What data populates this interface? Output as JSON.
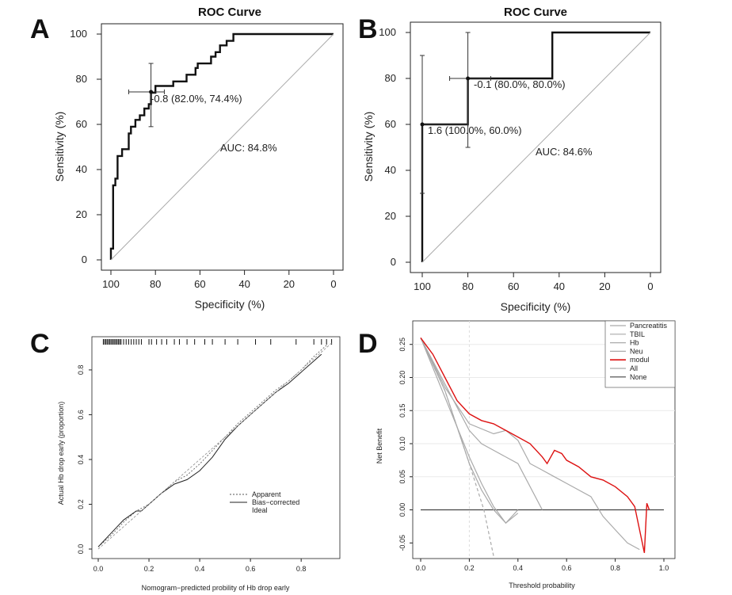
{
  "panels": {
    "A": {
      "label": "A",
      "chart_data": {
        "type": "line",
        "title": "ROC Curve",
        "xlabel": "Specificity (%)",
        "ylabel": "Sensitivity (%)",
        "x_reversed": true,
        "xlim": [
          100,
          0
        ],
        "ylim": [
          0,
          100
        ],
        "xticks": [
          "100",
          "80",
          "60",
          "40",
          "20",
          "0"
        ],
        "yticks": [
          "0",
          "20",
          "40",
          "60",
          "80",
          "100"
        ],
        "auc_label": "AUC: 84.8%",
        "threshold_label": "-0.8 (82.0%, 74.4%)",
        "threshold_point": {
          "specificity": 82,
          "sensitivity": 74.4,
          "ci_spec": [
            92,
            76
          ],
          "ci_sens": [
            59,
            87
          ]
        },
        "series": [
          {
            "type": "step",
            "points": [
              [
                100,
                0
              ],
              [
                100,
                5
              ],
              [
                99,
                5
              ],
              [
                99,
                33
              ],
              [
                98,
                33
              ],
              [
                98,
                36
              ],
              [
                97,
                36
              ],
              [
                97,
                46
              ],
              [
                95,
                46
              ],
              [
                95,
                49
              ],
              [
                92,
                49
              ],
              [
                92,
                56
              ],
              [
                91,
                56
              ],
              [
                91,
                59
              ],
              [
                89,
                59
              ],
              [
                89,
                62
              ],
              [
                87,
                62
              ],
              [
                87,
                64
              ],
              [
                85,
                64
              ],
              [
                85,
                67
              ],
              [
                83,
                67
              ],
              [
                83,
                69
              ],
              [
                82,
                69
              ],
              [
                82,
                74
              ],
              [
                80,
                74
              ],
              [
                80,
                77
              ],
              [
                72,
                77
              ],
              [
                72,
                79
              ],
              [
                66,
                79
              ],
              [
                66,
                82
              ],
              [
                62,
                82
              ],
              [
                62,
                85
              ],
              [
                61,
                85
              ],
              [
                61,
                87
              ],
              [
                55,
                87
              ],
              [
                55,
                90
              ],
              [
                53,
                90
              ],
              [
                53,
                92
              ],
              [
                51,
                92
              ],
              [
                51,
                95
              ],
              [
                48,
                95
              ],
              [
                48,
                97
              ],
              [
                45,
                97
              ],
              [
                45,
                100
              ],
              [
                0,
                100
              ]
            ]
          },
          {
            "type": "diagonal",
            "points": [
              [
                100,
                0
              ],
              [
                0,
                100
              ]
            ]
          }
        ]
      }
    },
    "B": {
      "label": "B",
      "chart_data": {
        "type": "line",
        "title": "ROC Curve",
        "xlabel": "Specificity (%)",
        "ylabel": "Sensitivity (%)",
        "x_reversed": true,
        "xlim": [
          100,
          0
        ],
        "ylim": [
          0,
          100
        ],
        "xticks": [
          "100",
          "80",
          "60",
          "40",
          "20",
          "0"
        ],
        "yticks": [
          "0",
          "20",
          "40",
          "60",
          "80",
          "100"
        ],
        "auc_label": "AUC: 84.6%",
        "threshold_labels": [
          "-0.1 (80.0%, 80.0%)",
          "1.6 (100.0%, 60.0%)"
        ],
        "threshold_points": [
          {
            "specificity": 80,
            "sensitivity": 80,
            "ci_spec": [
              88,
              70
            ],
            "ci_sens": [
              50,
              100
            ]
          },
          {
            "specificity": 100,
            "sensitivity": 60,
            "ci_spec": [
              100,
              80
            ],
            "ci_sens": [
              30,
              90
            ]
          }
        ],
        "series": [
          {
            "type": "step",
            "points": [
              [
                100,
                0
              ],
              [
                100,
                60
              ],
              [
                80,
                60
              ],
              [
                80,
                80
              ],
              [
                43,
                80
              ],
              [
                43,
                100
              ],
              [
                0,
                100
              ]
            ]
          },
          {
            "type": "diagonal",
            "points": [
              [
                100,
                0
              ],
              [
                0,
                100
              ]
            ]
          }
        ]
      }
    },
    "C": {
      "label": "C",
      "chart_data": {
        "type": "line",
        "xlabel": "Nomogram−predicted probility of Hb drop early",
        "ylabel": "Actual Hb drop early (proportion)",
        "xlim": [
          0,
          0.94
        ],
        "ylim": [
          0,
          0.92
        ],
        "xticks": [
          "0.0",
          "0.2",
          "0.4",
          "0.6",
          "0.8"
        ],
        "yticks": [
          "0.0",
          "0.2",
          "0.4",
          "0.6",
          "0.8"
        ],
        "legend": [
          "Apparent",
          "Bias−corrected",
          "Ideal"
        ],
        "series": [
          {
            "name": "Apparent",
            "points": [
              [
                0.0,
                0.01
              ],
              [
                0.05,
                0.06
              ],
              [
                0.1,
                0.12
              ],
              [
                0.15,
                0.17
              ],
              [
                0.2,
                0.2
              ],
              [
                0.25,
                0.25
              ],
              [
                0.3,
                0.3
              ],
              [
                0.35,
                0.33
              ],
              [
                0.4,
                0.38
              ],
              [
                0.45,
                0.44
              ],
              [
                0.5,
                0.5
              ],
              [
                0.55,
                0.56
              ],
              [
                0.6,
                0.61
              ],
              [
                0.65,
                0.66
              ],
              [
                0.7,
                0.71
              ],
              [
                0.75,
                0.75
              ],
              [
                0.8,
                0.8
              ],
              [
                0.85,
                0.86
              ],
              [
                0.9,
                0.91
              ]
            ]
          },
          {
            "name": "Bias−corrected",
            "points": [
              [
                0.0,
                0.01
              ],
              [
                0.05,
                0.07
              ],
              [
                0.1,
                0.13
              ],
              [
                0.15,
                0.17
              ],
              [
                0.17,
                0.17
              ],
              [
                0.2,
                0.2
              ],
              [
                0.25,
                0.25
              ],
              [
                0.3,
                0.29
              ],
              [
                0.35,
                0.31
              ],
              [
                0.4,
                0.35
              ],
              [
                0.45,
                0.41
              ],
              [
                0.5,
                0.49
              ],
              [
                0.55,
                0.55
              ],
              [
                0.6,
                0.6
              ],
              [
                0.65,
                0.65
              ],
              [
                0.7,
                0.7
              ],
              [
                0.75,
                0.74
              ],
              [
                0.8,
                0.79
              ],
              [
                0.85,
                0.84
              ],
              [
                0.88,
                0.87
              ]
            ]
          },
          {
            "name": "Ideal",
            "points": [
              [
                0.0,
                0.0
              ],
              [
                0.92,
                0.92
              ]
            ]
          }
        ],
        "rug": [
          0.02,
          0.025,
          0.03,
          0.035,
          0.04,
          0.045,
          0.05,
          0.055,
          0.06,
          0.065,
          0.07,
          0.075,
          0.08,
          0.085,
          0.09,
          0.1,
          0.11,
          0.12,
          0.13,
          0.14,
          0.15,
          0.16,
          0.17,
          0.2,
          0.21,
          0.23,
          0.25,
          0.27,
          0.3,
          0.32,
          0.35,
          0.38,
          0.42,
          0.45,
          0.5,
          0.55,
          0.62,
          0.68,
          0.78,
          0.85,
          0.88,
          0.9,
          0.92
        ]
      }
    },
    "D": {
      "label": "D",
      "chart_data": {
        "type": "line",
        "xlabel": "Threshold probability",
        "ylabel": "Net Benefit",
        "xlim": [
          0,
          1.0
        ],
        "ylim": [
          -0.07,
          0.27
        ],
        "xticks": [
          "0.0",
          "0.2",
          "0.4",
          "0.6",
          "0.8",
          "1.0"
        ],
        "yticks": [
          "0.25",
          "0.20",
          "0.15",
          "0.10",
          "0.05",
          "0.00",
          "-0.05"
        ],
        "legend": [
          "Pancreatitis",
          "TBIL",
          "Hb",
          "Neu",
          "modul",
          "All",
          "None"
        ],
        "colors": {
          "modul": "#dd1111",
          "gray": "#aaaaaa",
          "none": "#444444"
        },
        "series": [
          {
            "name": "modul",
            "points": [
              [
                0.0,
                0.26
              ],
              [
                0.05,
                0.235
              ],
              [
                0.1,
                0.2
              ],
              [
                0.15,
                0.165
              ],
              [
                0.2,
                0.145
              ],
              [
                0.25,
                0.135
              ],
              [
                0.3,
                0.13
              ],
              [
                0.35,
                0.12
              ],
              [
                0.4,
                0.11
              ],
              [
                0.45,
                0.1
              ],
              [
                0.5,
                0.08
              ],
              [
                0.52,
                0.07
              ],
              [
                0.55,
                0.09
              ],
              [
                0.58,
                0.085
              ],
              [
                0.6,
                0.075
              ],
              [
                0.65,
                0.065
              ],
              [
                0.7,
                0.05
              ],
              [
                0.75,
                0.045
              ],
              [
                0.8,
                0.035
              ],
              [
                0.85,
                0.02
              ],
              [
                0.88,
                0.005
              ],
              [
                0.9,
                -0.03
              ],
              [
                0.92,
                -0.065
              ],
              [
                0.93,
                0.01
              ],
              [
                0.94,
                0.0
              ]
            ]
          },
          {
            "name": "Pancreatitis",
            "points": [
              [
                0.0,
                0.26
              ],
              [
                0.1,
                0.185
              ],
              [
                0.2,
                0.13
              ],
              [
                0.3,
                0.115
              ],
              [
                0.35,
                0.12
              ],
              [
                0.4,
                0.105
              ],
              [
                0.45,
                0.07
              ],
              [
                0.5,
                0.06
              ],
              [
                0.55,
                0.05
              ],
              [
                0.6,
                0.04
              ],
              [
                0.7,
                0.02
              ],
              [
                0.75,
                -0.01
              ],
              [
                0.8,
                -0.03
              ],
              [
                0.85,
                -0.05
              ],
              [
                0.9,
                -0.06
              ]
            ]
          },
          {
            "name": "TBIL",
            "points": [
              [
                0.0,
                0.26
              ],
              [
                0.1,
                0.17
              ],
              [
                0.2,
                0.08
              ],
              [
                0.25,
                0.04
              ],
              [
                0.3,
                0.005
              ],
              [
                0.35,
                -0.02
              ],
              [
                0.4,
                0.0
              ]
            ]
          },
          {
            "name": "Hb",
            "points": [
              [
                0.0,
                0.26
              ],
              [
                0.1,
                0.19
              ],
              [
                0.2,
                0.12
              ],
              [
                0.25,
                0.1
              ],
              [
                0.3,
                0.09
              ],
              [
                0.4,
                0.07
              ],
              [
                0.5,
                0.0
              ]
            ]
          },
          {
            "name": "Neu",
            "points": [
              [
                0.0,
                0.26
              ],
              [
                0.1,
                0.18
              ],
              [
                0.2,
                0.07
              ],
              [
                0.25,
                0.03
              ],
              [
                0.3,
                0.0
              ],
              [
                0.35,
                -0.02
              ],
              [
                0.4,
                -0.005
              ]
            ]
          },
          {
            "name": "All",
            "points": [
              [
                0.0,
                0.26
              ],
              [
                0.1,
                0.18
              ],
              [
                0.2,
                0.07
              ],
              [
                0.26,
                0.0
              ],
              [
                0.3,
                -0.07
              ]
            ]
          },
          {
            "name": "None",
            "points": [
              [
                0.0,
                0.0
              ],
              [
                1.0,
                0.0
              ]
            ]
          }
        ]
      }
    }
  }
}
